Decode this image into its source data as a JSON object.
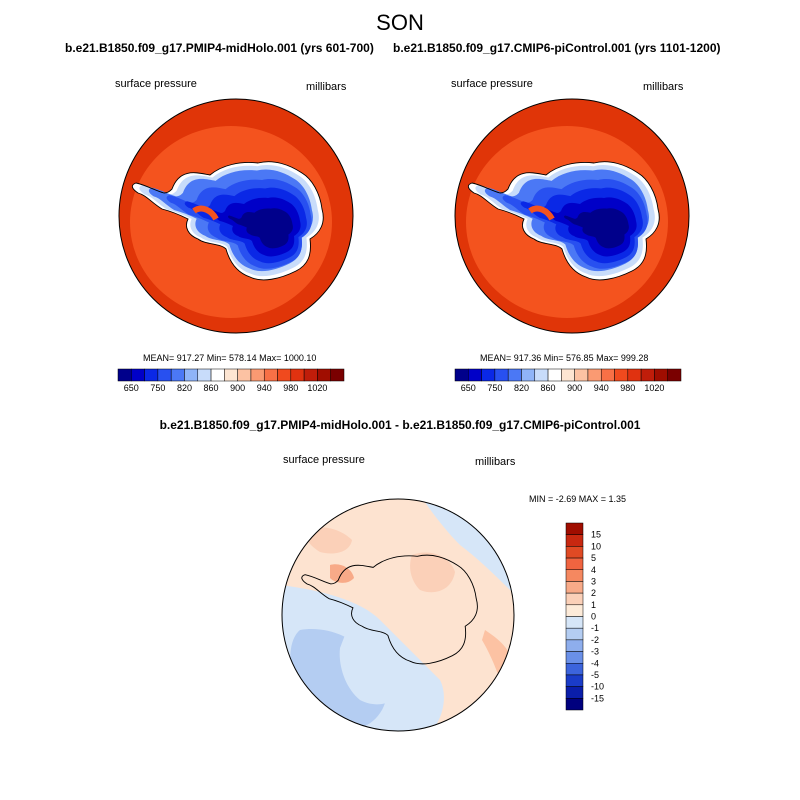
{
  "title": "SON",
  "panels": [
    {
      "case_title": "b.e21.B1850.f09_g17.PMIP4-midHolo.001 (yrs 601-700)",
      "left_label": "surface pressure",
      "right_label": "millibars",
      "stats": "MEAN= 917.27  Min= 578.14  Max= 1000.10"
    },
    {
      "case_title": "b.e21.B1850.f09_g17.CMIP6-piControl.001 (yrs 1101-1200)",
      "left_label": "surface pressure",
      "right_label": "millibars",
      "stats": "MEAN= 917.36  Min= 576.85  Max= 999.28"
    }
  ],
  "horizontal_colorbar": {
    "labels": [
      "650",
      "750",
      "820",
      "860",
      "900",
      "940",
      "980",
      "1020"
    ],
    "colors": [
      "#00008b",
      "#0000c8",
      "#0a28e6",
      "#2850f0",
      "#4b78f5",
      "#8fb4f8",
      "#c8dcfa",
      "#ffffff",
      "#fde5d2",
      "#fcc2a3",
      "#fa9a72",
      "#f87046",
      "#f04a1e",
      "#e03210",
      "#c01d0a",
      "#a00d00",
      "#7a0000"
    ]
  },
  "diff_panel": {
    "title": "b.e21.B1850.f09_g17.PMIP4-midHolo.001 - b.e21.B1850.f09_g17.CMIP6-piControl.001",
    "left_label": "surface pressure",
    "right_label": "millibars",
    "minmax": "MIN =  -2.69 MAX =   1.35",
    "colorbar_labels": [
      "15",
      "10",
      "5",
      "4",
      "3",
      "2",
      "1",
      "0",
      "-1",
      "-2",
      "-3",
      "-4",
      "-5",
      "-10",
      "-15"
    ],
    "colorbar_colors": [
      "#a00d00",
      "#c82810",
      "#e04a24",
      "#f06440",
      "#f58860",
      "#f8aa88",
      "#fbd0b8",
      "#fdebd9",
      "#d6e6f8",
      "#b4cdf2",
      "#8eaeed",
      "#6a90e8",
      "#3c64dc",
      "#1a3cc8",
      "#0a1eaa",
      "#00007e"
    ]
  },
  "colors": {
    "ocean_outer": "#e03508",
    "ocean_inner": "#f4531e",
    "ice_dark": "#00008b",
    "diff_background": "#fde3d0",
    "diff_blue": "#d0e2f7",
    "diff_blue_strong": "#8eaeed"
  }
}
